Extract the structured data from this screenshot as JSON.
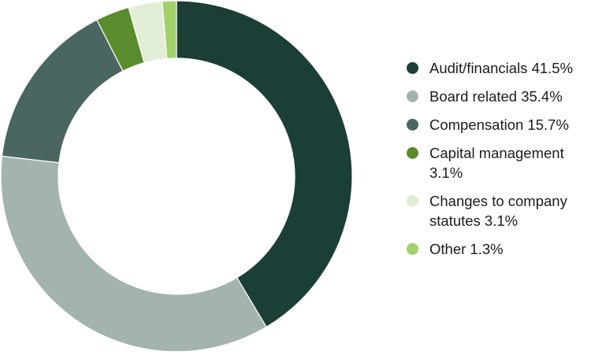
{
  "chart_data": {
    "type": "pie",
    "donut": true,
    "title": "",
    "legend_position": "right",
    "slices": [
      {
        "label": "Audit/financials",
        "value": 41.5,
        "legend_text": "Audit/financials 41.5%",
        "color": "#1b3f36"
      },
      {
        "label": "Board related",
        "value": 35.4,
        "legend_text": "Board related 35.4%",
        "color": "#a3b3ae"
      },
      {
        "label": "Compensation",
        "value": 15.7,
        "legend_text": "Compensation 15.7%",
        "color": "#4a6660"
      },
      {
        "label": "Capital management",
        "value": 3.1,
        "legend_text": "Capital management 3.1%",
        "color": "#5a8c2e"
      },
      {
        "label": "Changes to company statutes",
        "value": 3.1,
        "legend_text": "Changes to company statutes 3.1%",
        "color": "#e2edd6"
      },
      {
        "label": "Other",
        "value": 1.3,
        "legend_text": "Other 1.3%",
        "color": "#a2d06a"
      }
    ]
  }
}
